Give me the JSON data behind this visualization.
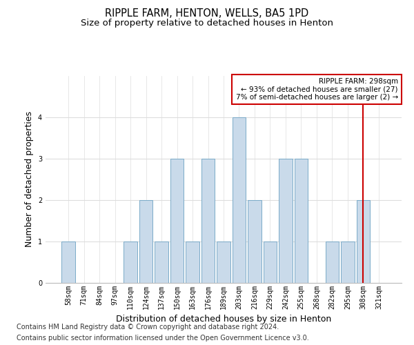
{
  "title": "RIPPLE FARM, HENTON, WELLS, BA5 1PD",
  "subtitle": "Size of property relative to detached houses in Henton",
  "xlabel": "Distribution of detached houses by size in Henton",
  "ylabel": "Number of detached properties",
  "categories": [
    "58sqm",
    "71sqm",
    "84sqm",
    "97sqm",
    "110sqm",
    "124sqm",
    "137sqm",
    "150sqm",
    "163sqm",
    "176sqm",
    "189sqm",
    "203sqm",
    "216sqm",
    "229sqm",
    "242sqm",
    "255sqm",
    "268sqm",
    "282sqm",
    "295sqm",
    "308sqm",
    "321sqm"
  ],
  "values": [
    1,
    0,
    0,
    0,
    1,
    2,
    1,
    3,
    1,
    3,
    1,
    4,
    2,
    1,
    3,
    3,
    0,
    1,
    1,
    2,
    0
  ],
  "bar_color": "#c9daea",
  "bar_edge_color": "#7aaac8",
  "ylim": [
    0,
    5
  ],
  "yticks": [
    0,
    1,
    2,
    3,
    4,
    5
  ],
  "annotation_text": "RIPPLE FARM: 298sqm\n← 93% of detached houses are smaller (27)\n7% of semi-detached houses are larger (2) →",
  "annotation_box_color": "#cc0000",
  "vline_x_index": 19.0,
  "vline_color": "#cc0000",
  "footer_line1": "Contains HM Land Registry data © Crown copyright and database right 2024.",
  "footer_line2": "Contains public sector information licensed under the Open Government Licence v3.0.",
  "grid_color": "#dddddd",
  "background_color": "#ffffff",
  "title_fontsize": 10.5,
  "subtitle_fontsize": 9.5,
  "ylabel_fontsize": 9,
  "xlabel_fontsize": 9,
  "tick_fontsize": 7,
  "annotation_fontsize": 7.5,
  "footer_fontsize": 7
}
